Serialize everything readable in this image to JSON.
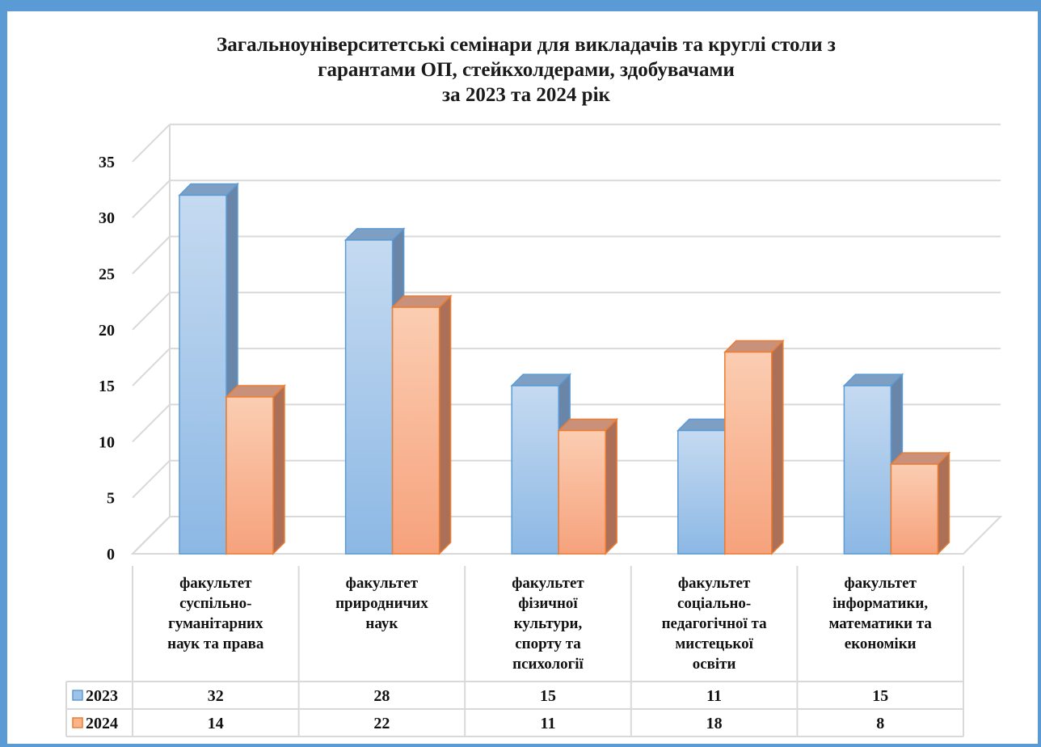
{
  "chart_data": {
    "type": "bar",
    "title_lines": [
      "Загальноуніверситетські семінари для викладачів та круглі столи з",
      "гарантами ОП, стейкхолдерами, здобувачами",
      "за 2023 та 2024 рік"
    ],
    "categories": [
      [
        "факультет",
        "суспільно-",
        "гуманітарних",
        "наук та права"
      ],
      [
        "факультет",
        "природничих",
        "наук"
      ],
      [
        "факультет",
        "фізичної",
        "культури,",
        "спорту та",
        "психології"
      ],
      [
        "факультет",
        "соціально-",
        "педагогічної та",
        "мистецької",
        "освіти"
      ],
      [
        "факультет",
        "інформатики,",
        "математики та",
        "економіки"
      ]
    ],
    "series": [
      {
        "name": "2023",
        "values": [
          32,
          28,
          15,
          11,
          15
        ],
        "color": "#9dc3e6"
      },
      {
        "name": "2024",
        "values": [
          14,
          22,
          11,
          18,
          8
        ],
        "color": "#f8b58c"
      }
    ],
    "y_ticks": [
      "0",
      "5",
      "10",
      "15",
      "20",
      "25",
      "30",
      "35"
    ],
    "ylim": [
      0,
      35
    ],
    "grid": true,
    "legend": "data-table",
    "style": "3d-clustered-column"
  }
}
